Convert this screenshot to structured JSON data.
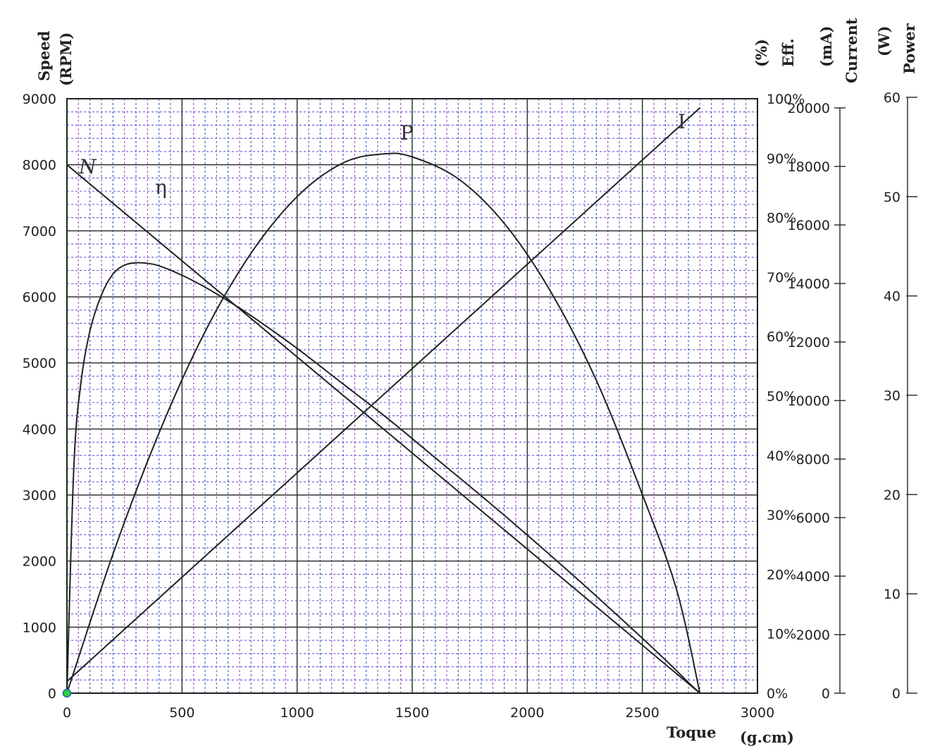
{
  "chart_data": {
    "type": "line",
    "title": "",
    "xlabel": "Toque",
    "xunit": "(g.cm)",
    "xlim": [
      0,
      3000
    ],
    "x_ticks": [
      "0",
      "500",
      "1000",
      "1500",
      "2000",
      "2500",
      "3000"
    ],
    "y_axes": [
      {
        "id": "speed",
        "label": "Speed",
        "unit": "(RPM)",
        "ylim": [
          0,
          9000
        ],
        "ticks": [
          "0",
          "1000",
          "2000",
          "3000",
          "4000",
          "5000",
          "6000",
          "7000",
          "8000",
          "9000"
        ]
      },
      {
        "id": "eff",
        "label": "Eff.",
        "unit": "(%)",
        "ylim": [
          0,
          100
        ],
        "ticks": [
          "0%",
          "10%",
          "20%",
          "30%",
          "40%",
          "50%",
          "60%",
          "70%",
          "80%",
          "90%",
          "100%"
        ]
      },
      {
        "id": "current",
        "label": "Current",
        "unit": "(mA)",
        "ylim": [
          0,
          20000
        ],
        "ticks": [
          "0",
          "2000",
          "4000",
          "6000",
          "8000",
          "10000",
          "12000",
          "14000",
          "16000",
          "18000",
          "20000"
        ]
      },
      {
        "id": "power",
        "label": "Power",
        "unit": "(W)",
        "ylim": [
          0,
          60
        ],
        "ticks": [
          "0",
          "10",
          "20",
          "30",
          "40",
          "50",
          "60"
        ]
      }
    ],
    "series": [
      {
        "name": "N",
        "axis": "speed",
        "x": [
          0,
          2750
        ],
        "y": [
          8000,
          0
        ]
      },
      {
        "name": "I",
        "axis": "current",
        "x": [
          0,
          2750
        ],
        "y": [
          400,
          20000
        ]
      },
      {
        "name": "η",
        "axis": "eff",
        "x": [
          0,
          30,
          60,
          100,
          150,
          200,
          250,
          300,
          350,
          400,
          500,
          600,
          700,
          800,
          1000,
          1200,
          1400,
          1600,
          1800,
          2000,
          2200,
          2400,
          2600,
          2700,
          2750
        ],
        "y": [
          0,
          38,
          52,
          61,
          67,
          70.5,
          72,
          72.4,
          72.3,
          71.9,
          70.3,
          68.3,
          66,
          63.5,
          58,
          52,
          46,
          39.6,
          33.2,
          26.6,
          19.8,
          12.8,
          5.6,
          1.8,
          0
        ]
      },
      {
        "name": "P",
        "axis": "power",
        "x": [
          0,
          200,
          400,
          600,
          800,
          1000,
          1200,
          1375,
          1500,
          1700,
          1900,
          2100,
          2300,
          2500,
          2650,
          2750
        ],
        "y": [
          0,
          14,
          26.2,
          36.4,
          44.3,
          50,
          53.4,
          54.3,
          54,
          51.8,
          47.3,
          40.5,
          31.5,
          20,
          10.3,
          0
        ]
      }
    ],
    "series_labels": [
      "N",
      "η",
      "P",
      "I"
    ]
  }
}
